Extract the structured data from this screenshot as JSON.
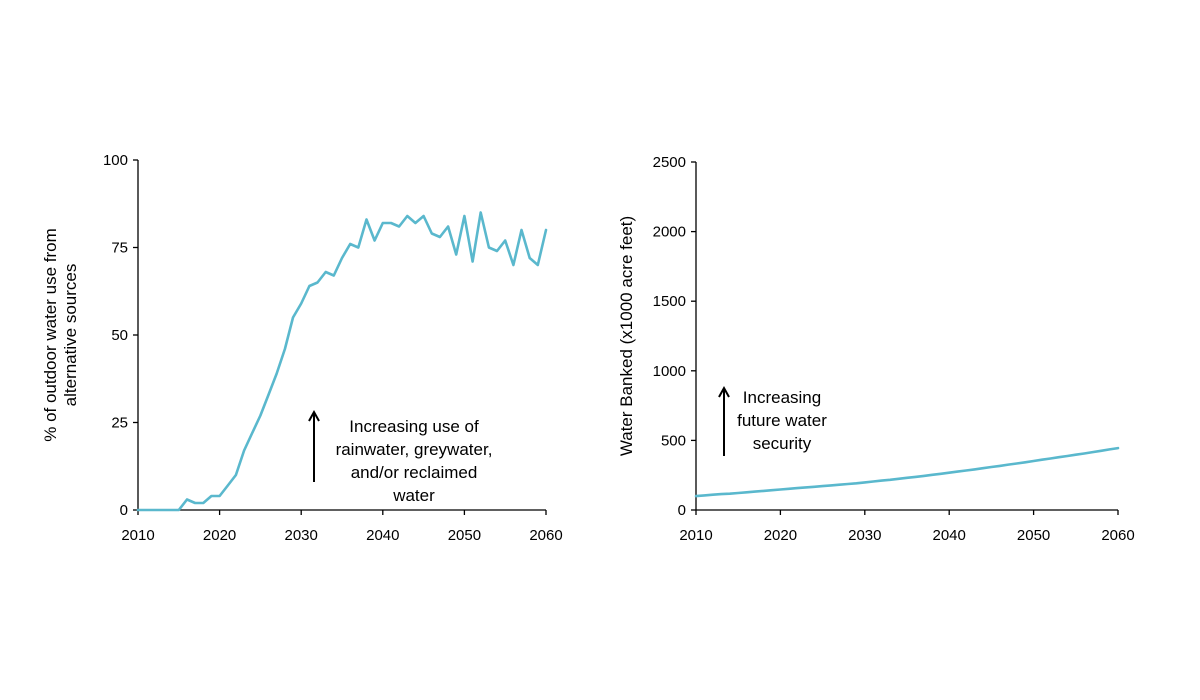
{
  "colors": {
    "series": "#5ab8cd",
    "axis": "#000000",
    "background": "#ffffff"
  },
  "chart_data": [
    {
      "type": "line",
      "title": "",
      "xlabel": "",
      "ylabel_lines": [
        "% of outdoor water use from",
        "alternative sources"
      ],
      "xlim": [
        2010,
        2060
      ],
      "ylim": [
        0,
        100
      ],
      "xticks": [
        2010,
        2020,
        2030,
        2040,
        2050,
        2060
      ],
      "yticks": [
        0,
        25,
        50,
        75,
        100
      ],
      "annotation": {
        "lines": [
          "Increasing use of",
          "rainwater, greywater,",
          "and/or reclaimed",
          "water"
        ],
        "arrow": "up"
      },
      "series": [
        {
          "x": [
            2010,
            2011,
            2012,
            2013,
            2014,
            2015,
            2016,
            2017,
            2018,
            2019,
            2020,
            2021,
            2022,
            2023,
            2024,
            2025,
            2026,
            2027,
            2028,
            2029,
            2030,
            2031,
            2032,
            2033,
            2034,
            2035,
            2036,
            2037,
            2038,
            2039,
            2040,
            2041,
            2042,
            2043,
            2044,
            2045,
            2046,
            2047,
            2048,
            2049,
            2050,
            2051,
            2052,
            2053,
            2054,
            2055,
            2056,
            2057,
            2058,
            2059,
            2060
          ],
          "y": [
            0,
            0,
            0,
            0,
            0,
            0,
            3,
            2,
            2,
            4,
            4,
            7,
            10,
            17,
            22,
            27,
            33,
            39,
            46,
            55,
            59,
            64,
            65,
            68,
            67,
            72,
            76,
            75,
            83,
            77,
            82,
            82,
            81,
            84,
            82,
            84,
            79,
            78,
            81,
            73,
            84,
            71,
            85,
            75,
            74,
            77,
            70,
            80,
            72,
            70,
            80
          ]
        }
      ]
    },
    {
      "type": "line",
      "title": "",
      "xlabel": "",
      "ylabel_lines": [
        "Water Banked (x1000 acre feet)"
      ],
      "xlim": [
        2010,
        2060
      ],
      "ylim": [
        0,
        2500
      ],
      "xticks": [
        2010,
        2020,
        2030,
        2040,
        2050,
        2060
      ],
      "yticks": [
        0,
        500,
        1000,
        1500,
        2000,
        2500
      ],
      "annotation": {
        "lines": [
          "Increasing",
          "future water",
          "security"
        ],
        "arrow": "up"
      },
      "series": [
        {
          "x": [
            2010,
            2011,
            2012,
            2013,
            2014,
            2015,
            2016,
            2017,
            2018,
            2019,
            2020,
            2021,
            2022,
            2023,
            2024,
            2025,
            2026,
            2027,
            2028,
            2029,
            2030,
            2031,
            2032,
            2033,
            2034,
            2035,
            2036,
            2037,
            2038,
            2039,
            2040,
            2041,
            2042,
            2043,
            2044,
            2045,
            2046,
            2047,
            2048,
            2049,
            2050,
            2051,
            2052,
            2053,
            2054,
            2055,
            2056,
            2057,
            2058,
            2059,
            2060
          ],
          "y": [
            100,
            105,
            110,
            114,
            117,
            122,
            127,
            132,
            137,
            142,
            147,
            152,
            157,
            162,
            167,
            172,
            177,
            182,
            187,
            192,
            198,
            205,
            211,
            217,
            224,
            231,
            238,
            245,
            253,
            260,
            268,
            276,
            284,
            292,
            300,
            309,
            317,
            326,
            334,
            343,
            352,
            361,
            370,
            379,
            388,
            397,
            406,
            416,
            425,
            435,
            445
          ]
        }
      ]
    }
  ]
}
